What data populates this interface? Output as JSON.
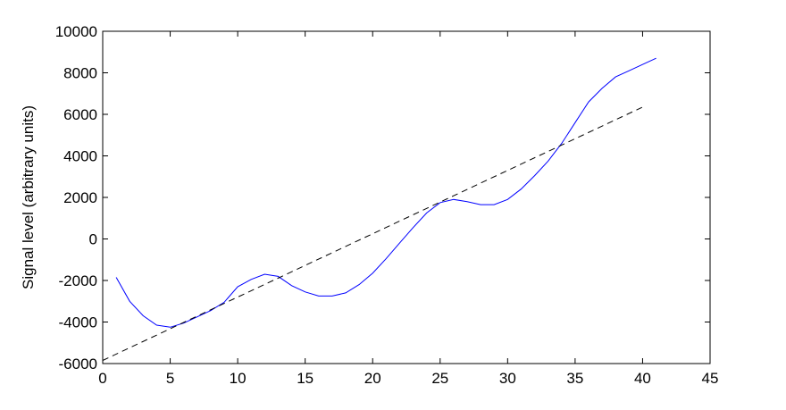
{
  "chart_data": {
    "type": "line",
    "title": "",
    "xlabel": "",
    "ylabel": "Signal level (arbitrary units)",
    "xlim": [
      0,
      45
    ],
    "ylim": [
      -6000,
      10000
    ],
    "xticks": [
      0,
      5,
      10,
      15,
      20,
      25,
      30,
      35,
      40,
      45
    ],
    "yticks": [
      -6000,
      -4000,
      -2000,
      0,
      2000,
      4000,
      6000,
      8000,
      10000
    ],
    "grid": false,
    "legend": "none",
    "series": [
      {
        "style": "solid",
        "color": "#0000ff",
        "x": [
          1,
          2,
          3,
          4,
          5,
          6,
          7,
          8,
          9,
          10,
          11,
          12,
          13,
          14,
          15,
          16,
          17,
          18,
          19,
          20,
          21,
          22,
          23,
          24,
          25,
          26,
          27,
          28,
          29,
          30,
          31,
          32,
          33,
          34,
          35,
          36,
          37,
          38,
          39,
          40,
          41
        ],
        "y": [
          -1850,
          -3000,
          -3700,
          -4150,
          -4250,
          -4050,
          -3750,
          -3450,
          -3050,
          -2300,
          -1950,
          -1700,
          -1800,
          -2250,
          -2550,
          -2750,
          -2750,
          -2600,
          -2200,
          -1650,
          -950,
          -200,
          550,
          1250,
          1750,
          1900,
          1800,
          1650,
          1650,
          1900,
          2400,
          3050,
          3750,
          4600,
          5600,
          6600,
          7250,
          7800,
          8100,
          8400,
          8700
        ]
      },
      {
        "style": "dashed",
        "color": "#000000",
        "x": [
          0,
          40
        ],
        "y": [
          -5850,
          6350
        ]
      }
    ]
  }
}
